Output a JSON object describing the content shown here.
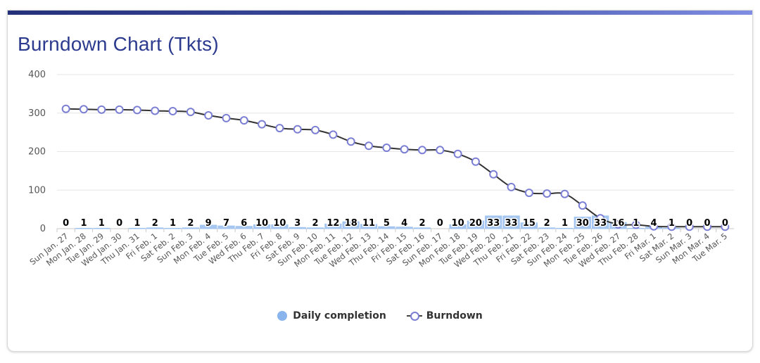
{
  "title": "Burndown Chart (Tkts)",
  "colors": {
    "bar": "#8ab4ec",
    "line": "#333333",
    "marker_stroke": "#7b7fd4",
    "title": "#2c3b8e"
  },
  "legend": {
    "daily": "Daily completion",
    "burndown": "Burndown"
  },
  "chart_data": {
    "type": "bar+line",
    "title": "Burndown Chart (Tkts)",
    "ylim": [
      0,
      400
    ],
    "yticks": [
      0,
      100,
      200,
      300,
      400
    ],
    "grid": true,
    "legend_position": "bottom",
    "categories": [
      "Sun Jan. 27",
      "Mon Jan. 28",
      "Tue Jan. 29",
      "Wed Jan. 30",
      "Thu Jan. 31",
      "Fri Feb. 1",
      "Sat Feb. 2",
      "Sun Feb. 3",
      "Mon Feb. 4",
      "Tue Feb. 5",
      "Wed Feb. 6",
      "Thu Feb. 7",
      "Fri Feb. 8",
      "Sat Feb. 9",
      "Sun Feb. 10",
      "Mon Feb. 11",
      "Tue Feb. 12",
      "Wed Feb. 13",
      "Thu Feb. 14",
      "Fri Feb. 15",
      "Sat Feb. 16",
      "Sun Feb. 17",
      "Mon Feb. 18",
      "Tue Feb. 19",
      "Wed Feb. 20",
      "Thu Feb. 21",
      "Fri Feb. 22",
      "Sat Feb. 23",
      "Sun Feb. 24",
      "Mon Feb. 25",
      "Tue Feb. 26",
      "Wed Feb. 27",
      "Thu Feb. 28",
      "Fri Mar. 1",
      "Sat Mar. 2",
      "Sun Mar. 3",
      "Mon Mar. 4",
      "Tue Mar. 5"
    ],
    "series": [
      {
        "name": "Daily completion",
        "type": "bar",
        "values": [
          0,
          1,
          1,
          0,
          1,
          2,
          1,
          2,
          9,
          7,
          6,
          10,
          10,
          3,
          2,
          12,
          18,
          11,
          5,
          4,
          2,
          0,
          10,
          20,
          33,
          33,
          15,
          2,
          1,
          30,
          33,
          16,
          1,
          4,
          1,
          0,
          0,
          0
        ]
      },
      {
        "name": "Burndown",
        "type": "line",
        "values": [
          311,
          310,
          309,
          309,
          308,
          306,
          305,
          303,
          294,
          287,
          281,
          271,
          261,
          258,
          256,
          244,
          226,
          215,
          210,
          206,
          204,
          204,
          194,
          174,
          141,
          108,
          93,
          91,
          90,
          60,
          27,
          11,
          10,
          6,
          5,
          5,
          5,
          5
        ]
      }
    ]
  }
}
